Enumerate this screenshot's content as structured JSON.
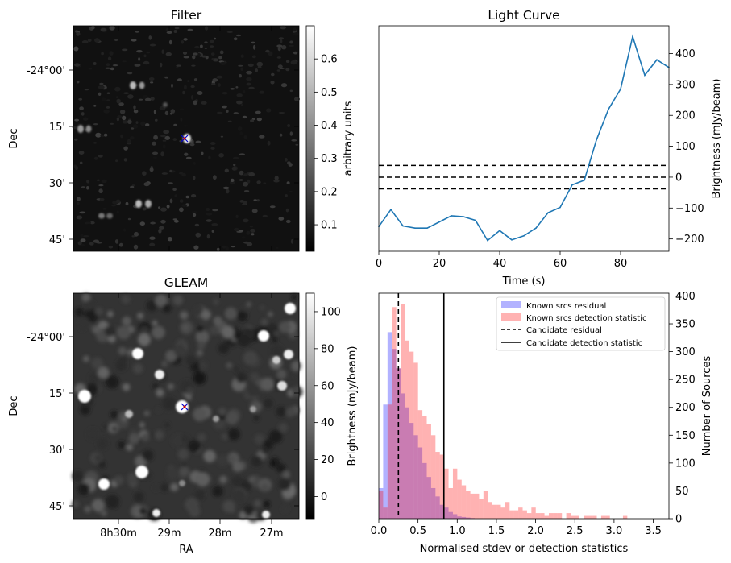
{
  "chart_data": [
    {
      "panel": "filter",
      "type": "heatmap",
      "title": "Filter",
      "xlabel": "",
      "ylabel": "Dec",
      "ytick_labels": [
        "-24°00'",
        "15'",
        "30'",
        "45'"
      ],
      "colorbar": {
        "label": "arbitrary units",
        "range": [
          0.02,
          0.7
        ],
        "ticks": [
          0.1,
          0.2,
          0.3,
          0.4,
          0.5,
          0.6
        ]
      },
      "colormap": "gray",
      "candidate_marker": "x"
    },
    {
      "panel": "gleam",
      "type": "heatmap",
      "title": "GLEAM",
      "xlabel": "RA",
      "ylabel": "Dec",
      "xtick_labels": [
        "8h30m",
        "29m",
        "28m",
        "27m"
      ],
      "ytick_labels": [
        "-24°00'",
        "15'",
        "30'",
        "45'"
      ],
      "colorbar": {
        "label": "Brightness (mJy/beam)",
        "range": [
          -12,
          110
        ],
        "ticks": [
          0,
          20,
          40,
          60,
          80,
          100
        ]
      },
      "colormap": "gray",
      "candidate_marker": "x"
    },
    {
      "panel": "light_curve",
      "type": "line",
      "title": "Light Curve",
      "xlabel": "Time (s)",
      "ylabel": "Brightness (mJy/beam)",
      "xlim": [
        0,
        96
      ],
      "ylim": [
        -240,
        490
      ],
      "xticks": [
        0,
        20,
        40,
        60,
        80
      ],
      "yticks": [
        -200,
        -100,
        0,
        100,
        200,
        300,
        400
      ],
      "x": [
        0,
        4,
        8,
        12,
        16,
        20,
        24,
        28,
        32,
        36,
        40,
        44,
        48,
        52,
        56,
        60,
        64,
        68,
        72,
        76,
        80,
        84,
        88,
        92,
        96
      ],
      "y": [
        -160,
        -105,
        -158,
        -165,
        -165,
        -145,
        -125,
        -128,
        -140,
        -205,
        -173,
        -203,
        -190,
        -165,
        -115,
        -98,
        -25,
        -10,
        120,
        220,
        285,
        455,
        330,
        380,
        355
      ],
      "hlines": [
        -38,
        0,
        38
      ],
      "color": "#1f77b4"
    },
    {
      "panel": "histogram",
      "type": "bar",
      "xlabel": "Normalised stdev or detection statistics",
      "ylabel": "Number of Sources",
      "xlim": [
        0,
        3.7
      ],
      "ylim": [
        0,
        405
      ],
      "xticks": [
        0.0,
        0.5,
        1.0,
        1.5,
        2.0,
        2.5,
        3.0,
        3.5
      ],
      "yticks": [
        0,
        50,
        100,
        150,
        200,
        250,
        300,
        350,
        400
      ],
      "bin_width": 0.0556,
      "series": [
        {
          "name": "Known srcs residual",
          "color": "#0000ff",
          "alpha": 0.3,
          "start": 0.0,
          "values": [
            55,
            205,
            335,
            305,
            270,
            225,
            200,
            172,
            150,
            128,
            100,
            75,
            55,
            40,
            25,
            20,
            12,
            8,
            4,
            3,
            2,
            1
          ]
        },
        {
          "name": "Known srcs detection statistic",
          "color": "#ff0000",
          "alpha": 0.3,
          "start": 0.0,
          "values": [
            50,
            20,
            205,
            380,
            270,
            385,
            320,
            300,
            280,
            195,
            185,
            170,
            150,
            120,
            115,
            90,
            55,
            90,
            70,
            60,
            50,
            45,
            45,
            35,
            50,
            30,
            25,
            25,
            20,
            30,
            15,
            15,
            20,
            15,
            10,
            20,
            10,
            10,
            5,
            10,
            10,
            10,
            0,
            10,
            5,
            5,
            0,
            5,
            5,
            5,
            0,
            5,
            5,
            0,
            0,
            0,
            5
          ]
        }
      ],
      "vlines": [
        {
          "name": "Candidate residual",
          "x": 0.25,
          "style": "dashed"
        },
        {
          "name": "Candidate detection statistic",
          "x": 0.83,
          "style": "solid"
        }
      ],
      "legend_position": "top-right"
    }
  ]
}
